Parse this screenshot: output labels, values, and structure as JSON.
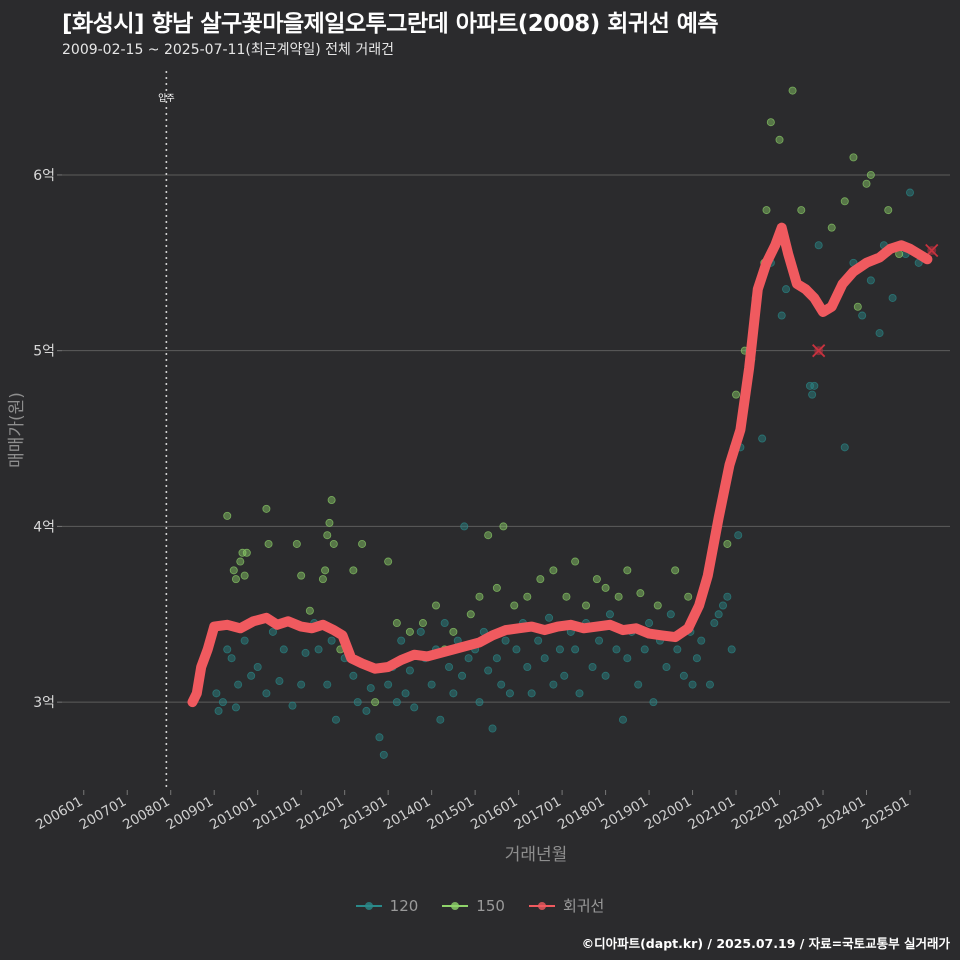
{
  "title": "[화성시] 향남 살구꽃마을제일오투그란데 아파트(2008) 회귀선 예측",
  "subtitle": "2009-02-15 ~ 2025-07-11(최근계약일) 전체 거래건",
  "footer": "©디아파트(dapt.kr) / 2025.07.19 / 자료=국토교통부 실거래가",
  "colors": {
    "background": "#2b2b2d",
    "s120": "#2a8a8a",
    "s150": "#8fd36a",
    "regression": "#f05a5f",
    "grid": "#5c5c5c"
  },
  "legend": [
    {
      "label": "120",
      "icon": "dot-line-icon",
      "color": "#2a8a8a"
    },
    {
      "label": "150",
      "icon": "dot-line-icon",
      "color": "#8fd36a"
    },
    {
      "label": "회귀선",
      "icon": "dot-line-icon",
      "color": "#f05a5f"
    }
  ],
  "chart_data": {
    "type": "scatter",
    "title": "[화성시] 향남 살구꽃마을제일오투그란데 아파트(2008) 회귀선 예측",
    "xlabel": "거래년월",
    "ylabel": "매매가(원)",
    "xlim": [
      2005.5,
      2025.92
    ],
    "ylim": [
      2.5,
      6.62
    ],
    "x_ticks": [
      "200601",
      "200701",
      "200801",
      "200901",
      "201001",
      "201101",
      "201201",
      "201301",
      "201401",
      "201501",
      "201601",
      "201701",
      "201801",
      "201901",
      "202001",
      "202101",
      "202201",
      "202301",
      "202401",
      "202501"
    ],
    "x_tick_values": [
      2006,
      2007,
      2008,
      2009,
      2010,
      2011,
      2012,
      2013,
      2014,
      2015,
      2016,
      2017,
      2018,
      2019,
      2020,
      2021,
      2022,
      2023,
      2024,
      2025
    ],
    "y_ticks": [
      "3억",
      "4억",
      "5억",
      "6억"
    ],
    "y_tick_values": [
      3,
      4,
      5,
      6
    ],
    "grid": true,
    "legend_position": "bottom",
    "annotation": {
      "label": "입주",
      "x": 2007.9
    },
    "series": [
      {
        "name": "120",
        "type": "scatter",
        "points": [
          [
            2009.05,
            3.05
          ],
          [
            2009.1,
            2.95
          ],
          [
            2009.2,
            3.0
          ],
          [
            2009.3,
            3.3
          ],
          [
            2009.4,
            3.25
          ],
          [
            2009.5,
            2.97
          ],
          [
            2009.55,
            3.1
          ],
          [
            2009.7,
            3.35
          ],
          [
            2009.85,
            3.15
          ],
          [
            2010.0,
            3.2
          ],
          [
            2010.2,
            3.05
          ],
          [
            2010.35,
            3.4
          ],
          [
            2010.5,
            3.12
          ],
          [
            2010.6,
            3.3
          ],
          [
            2010.8,
            2.98
          ],
          [
            2011.0,
            3.1
          ],
          [
            2011.1,
            3.28
          ],
          [
            2011.3,
            3.45
          ],
          [
            2011.4,
            3.3
          ],
          [
            2011.6,
            3.1
          ],
          [
            2011.7,
            3.35
          ],
          [
            2011.8,
            2.9
          ],
          [
            2012.0,
            3.25
          ],
          [
            2012.2,
            3.15
          ],
          [
            2012.3,
            3.0
          ],
          [
            2012.5,
            2.95
          ],
          [
            2012.6,
            3.08
          ],
          [
            2012.8,
            2.8
          ],
          [
            2012.9,
            2.7
          ],
          [
            2013.0,
            3.1
          ],
          [
            2013.1,
            3.2
          ],
          [
            2013.2,
            3.0
          ],
          [
            2013.3,
            3.35
          ],
          [
            2013.4,
            3.05
          ],
          [
            2013.5,
            3.18
          ],
          [
            2013.6,
            2.97
          ],
          [
            2013.75,
            3.4
          ],
          [
            2013.85,
            3.25
          ],
          [
            2014.0,
            3.1
          ],
          [
            2014.1,
            3.3
          ],
          [
            2014.2,
            2.9
          ],
          [
            2014.3,
            3.45
          ],
          [
            2014.4,
            3.2
          ],
          [
            2014.5,
            3.05
          ],
          [
            2014.6,
            3.35
          ],
          [
            2014.7,
            3.15
          ],
          [
            2014.75,
            4.0
          ],
          [
            2014.85,
            3.25
          ],
          [
            2015.0,
            3.3
          ],
          [
            2015.1,
            3.0
          ],
          [
            2015.2,
            3.4
          ],
          [
            2015.3,
            3.18
          ],
          [
            2015.4,
            2.85
          ],
          [
            2015.5,
            3.25
          ],
          [
            2015.6,
            3.1
          ],
          [
            2015.7,
            3.35
          ],
          [
            2015.8,
            3.05
          ],
          [
            2015.95,
            3.3
          ],
          [
            2016.1,
            3.45
          ],
          [
            2016.2,
            3.2
          ],
          [
            2016.3,
            3.05
          ],
          [
            2016.45,
            3.35
          ],
          [
            2016.6,
            3.25
          ],
          [
            2016.7,
            3.48
          ],
          [
            2016.8,
            3.1
          ],
          [
            2016.95,
            3.3
          ],
          [
            2017.05,
            3.15
          ],
          [
            2017.2,
            3.4
          ],
          [
            2017.3,
            3.3
          ],
          [
            2017.4,
            3.05
          ],
          [
            2017.55,
            3.45
          ],
          [
            2017.7,
            3.2
          ],
          [
            2017.85,
            3.35
          ],
          [
            2018.0,
            3.15
          ],
          [
            2018.1,
            3.5
          ],
          [
            2018.25,
            3.3
          ],
          [
            2018.4,
            2.9
          ],
          [
            2018.5,
            3.25
          ],
          [
            2018.6,
            3.4
          ],
          [
            2018.75,
            3.1
          ],
          [
            2018.9,
            3.3
          ],
          [
            2019.0,
            3.45
          ],
          [
            2019.1,
            3.0
          ],
          [
            2019.25,
            3.35
          ],
          [
            2019.4,
            3.2
          ],
          [
            2019.5,
            3.5
          ],
          [
            2019.65,
            3.3
          ],
          [
            2019.8,
            3.15
          ],
          [
            2019.95,
            3.4
          ],
          [
            2020.0,
            3.1
          ],
          [
            2020.1,
            3.25
          ],
          [
            2020.2,
            3.35
          ],
          [
            2020.4,
            3.1
          ],
          [
            2020.5,
            3.45
          ],
          [
            2020.6,
            3.5
          ],
          [
            2020.7,
            3.55
          ],
          [
            2020.8,
            3.6
          ],
          [
            2020.9,
            3.3
          ],
          [
            2021.05,
            3.95
          ],
          [
            2021.1,
            4.45
          ],
          [
            2021.3,
            5.0
          ],
          [
            2021.45,
            5.3
          ],
          [
            2021.6,
            4.5
          ],
          [
            2021.8,
            5.5
          ],
          [
            2022.05,
            5.2
          ],
          [
            2022.15,
            5.35
          ],
          [
            2022.7,
            4.8
          ],
          [
            2022.75,
            4.75
          ],
          [
            2022.8,
            4.8
          ],
          [
            2022.9,
            5.6
          ],
          [
            2023.3,
            5.3
          ],
          [
            2023.5,
            4.45
          ],
          [
            2023.7,
            5.5
          ],
          [
            2023.9,
            5.2
          ],
          [
            2024.1,
            5.4
          ],
          [
            2024.3,
            5.1
          ],
          [
            2024.4,
            5.6
          ],
          [
            2024.6,
            5.3
          ],
          [
            2024.9,
            5.55
          ],
          [
            2025.0,
            5.9
          ],
          [
            2025.2,
            5.5
          ]
        ]
      },
      {
        "name": "150",
        "type": "scatter",
        "points": [
          [
            2009.3,
            4.06
          ],
          [
            2009.45,
            3.75
          ],
          [
            2009.5,
            3.7
          ],
          [
            2009.6,
            3.8
          ],
          [
            2009.65,
            3.85
          ],
          [
            2009.7,
            3.72
          ],
          [
            2009.75,
            3.85
          ],
          [
            2010.2,
            4.1
          ],
          [
            2010.25,
            3.9
          ],
          [
            2010.6,
            3.45
          ],
          [
            2010.9,
            3.9
          ],
          [
            2011.0,
            3.72
          ],
          [
            2011.2,
            3.52
          ],
          [
            2011.5,
            3.7
          ],
          [
            2011.55,
            3.75
          ],
          [
            2011.6,
            3.95
          ],
          [
            2011.65,
            4.02
          ],
          [
            2011.7,
            4.15
          ],
          [
            2011.75,
            3.9
          ],
          [
            2011.9,
            3.3
          ],
          [
            2012.2,
            3.75
          ],
          [
            2012.4,
            3.9
          ],
          [
            2012.7,
            3.0
          ],
          [
            2013.0,
            3.8
          ],
          [
            2013.2,
            3.45
          ],
          [
            2013.5,
            3.4
          ],
          [
            2013.8,
            3.45
          ],
          [
            2014.1,
            3.55
          ],
          [
            2014.3,
            3.3
          ],
          [
            2014.5,
            3.4
          ],
          [
            2014.9,
            3.5
          ],
          [
            2015.1,
            3.6
          ],
          [
            2015.3,
            3.95
          ],
          [
            2015.5,
            3.65
          ],
          [
            2015.65,
            4.0
          ],
          [
            2015.9,
            3.55
          ],
          [
            2016.2,
            3.6
          ],
          [
            2016.5,
            3.7
          ],
          [
            2016.8,
            3.75
          ],
          [
            2017.1,
            3.6
          ],
          [
            2017.3,
            3.8
          ],
          [
            2017.55,
            3.55
          ],
          [
            2017.8,
            3.7
          ],
          [
            2018.0,
            3.65
          ],
          [
            2018.3,
            3.6
          ],
          [
            2018.5,
            3.75
          ],
          [
            2018.8,
            3.62
          ],
          [
            2019.2,
            3.55
          ],
          [
            2019.6,
            3.75
          ],
          [
            2019.9,
            3.6
          ],
          [
            2020.8,
            3.9
          ],
          [
            2020.95,
            4.45
          ],
          [
            2021.0,
            4.75
          ],
          [
            2021.2,
            5.0
          ],
          [
            2021.35,
            4.95
          ],
          [
            2021.5,
            5.35
          ],
          [
            2021.65,
            5.5
          ],
          [
            2021.7,
            5.8
          ],
          [
            2021.8,
            6.3
          ],
          [
            2022.0,
            6.2
          ],
          [
            2022.3,
            6.48
          ],
          [
            2022.5,
            5.8
          ],
          [
            2023.2,
            5.7
          ],
          [
            2023.5,
            5.85
          ],
          [
            2023.7,
            6.1
          ],
          [
            2023.8,
            5.25
          ],
          [
            2024.0,
            5.95
          ],
          [
            2024.1,
            6.0
          ],
          [
            2024.5,
            5.8
          ],
          [
            2024.75,
            5.55
          ]
        ]
      },
      {
        "name": "회귀선",
        "type": "line",
        "points": [
          [
            2008.5,
            3.0
          ],
          [
            2008.6,
            3.05
          ],
          [
            2008.7,
            3.2
          ],
          [
            2008.85,
            3.3
          ],
          [
            2009.0,
            3.43
          ],
          [
            2009.3,
            3.44
          ],
          [
            2009.6,
            3.42
          ],
          [
            2009.9,
            3.46
          ],
          [
            2010.2,
            3.48
          ],
          [
            2010.45,
            3.44
          ],
          [
            2010.7,
            3.46
          ],
          [
            2011.0,
            3.43
          ],
          [
            2011.25,
            3.42
          ],
          [
            2011.5,
            3.44
          ],
          [
            2011.75,
            3.41
          ],
          [
            2011.95,
            3.38
          ],
          [
            2012.15,
            3.25
          ],
          [
            2012.4,
            3.22
          ],
          [
            2012.7,
            3.19
          ],
          [
            2013.0,
            3.2
          ],
          [
            2013.3,
            3.24
          ],
          [
            2013.6,
            3.27
          ],
          [
            2013.9,
            3.26
          ],
          [
            2014.2,
            3.28
          ],
          [
            2014.5,
            3.3
          ],
          [
            2014.8,
            3.32
          ],
          [
            2015.1,
            3.34
          ],
          [
            2015.4,
            3.38
          ],
          [
            2015.7,
            3.41
          ],
          [
            2016.0,
            3.42
          ],
          [
            2016.3,
            3.43
          ],
          [
            2016.6,
            3.41
          ],
          [
            2016.9,
            3.43
          ],
          [
            2017.2,
            3.44
          ],
          [
            2017.5,
            3.42
          ],
          [
            2017.8,
            3.43
          ],
          [
            2018.1,
            3.44
          ],
          [
            2018.4,
            3.41
          ],
          [
            2018.7,
            3.42
          ],
          [
            2019.0,
            3.39
          ],
          [
            2019.3,
            3.38
          ],
          [
            2019.6,
            3.37
          ],
          [
            2019.9,
            3.42
          ],
          [
            2020.15,
            3.55
          ],
          [
            2020.35,
            3.72
          ],
          [
            2020.6,
            4.05
          ],
          [
            2020.85,
            4.35
          ],
          [
            2021.1,
            4.55
          ],
          [
            2021.3,
            4.9
          ],
          [
            2021.5,
            5.35
          ],
          [
            2021.7,
            5.5
          ],
          [
            2021.9,
            5.6
          ],
          [
            2022.05,
            5.7
          ],
          [
            2022.2,
            5.55
          ],
          [
            2022.4,
            5.38
          ],
          [
            2022.6,
            5.35
          ],
          [
            2022.8,
            5.3
          ],
          [
            2023.0,
            5.22
          ],
          [
            2023.2,
            5.25
          ],
          [
            2023.45,
            5.38
          ],
          [
            2023.7,
            5.45
          ],
          [
            2024.0,
            5.5
          ],
          [
            2024.3,
            5.53
          ],
          [
            2024.55,
            5.58
          ],
          [
            2024.8,
            5.6
          ],
          [
            2025.0,
            5.58
          ],
          [
            2025.2,
            5.55
          ],
          [
            2025.4,
            5.52
          ]
        ]
      }
    ],
    "excluded_points": [
      [
        2022.9,
        5.0
      ],
      [
        2025.5,
        5.57
      ]
    ]
  }
}
